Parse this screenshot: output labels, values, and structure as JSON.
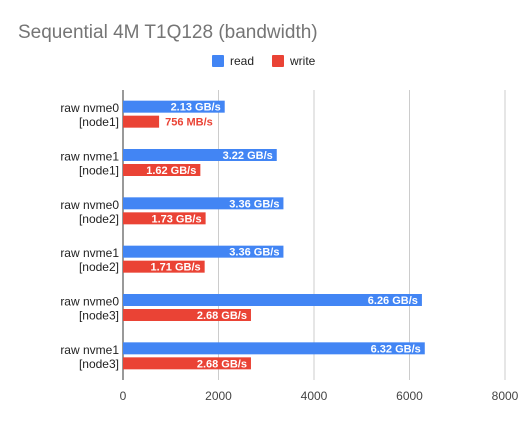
{
  "chart_data": {
    "type": "bar",
    "orientation": "horizontal",
    "title": "Sequential 4M T1Q128 (bandwidth)",
    "categories": [
      [
        "raw nvme0",
        "[node1]"
      ],
      [
        "raw nvme1",
        "[node1]"
      ],
      [
        "raw nvme0",
        "[node2]"
      ],
      [
        "raw nvme1",
        "[node2]"
      ],
      [
        "raw nvme0",
        "[node3]"
      ],
      [
        "raw nvme1",
        "[node3]"
      ]
    ],
    "series": [
      {
        "name": "read",
        "color": "#4285f4",
        "values": [
          2130,
          3220,
          3360,
          3360,
          6260,
          6320
        ],
        "labels": [
          "2.13 GB/s",
          "3.22 GB/s",
          "3.36 GB/s",
          "3.36 GB/s",
          "6.26 GB/s",
          "6.32 GB/s"
        ]
      },
      {
        "name": "write",
        "color": "#ea4335",
        "values": [
          756,
          1620,
          1730,
          1710,
          2680,
          2680
        ],
        "labels": [
          "756  MB/s",
          "1.62 GB/s",
          "1.73 GB/s",
          "1.71 GB/s",
          "2.68 GB/s",
          "2.68 GB/s"
        ]
      }
    ],
    "xlim": [
      0,
      8000
    ],
    "xticks": [
      "0",
      "2000",
      "4000",
      "6000",
      "8000"
    ],
    "legend_position": "top",
    "grid": true
  }
}
